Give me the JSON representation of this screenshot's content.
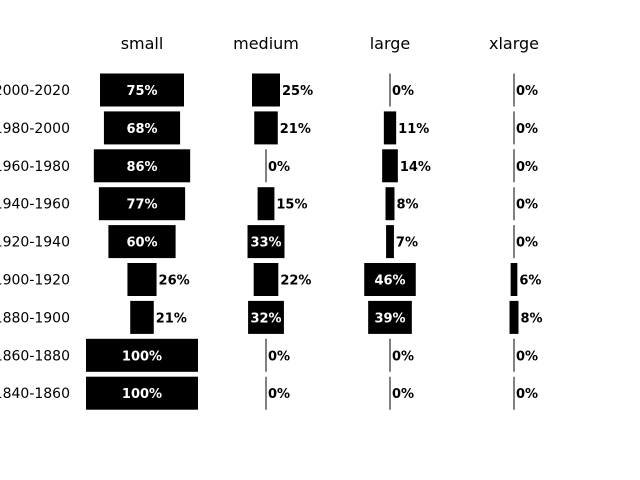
{
  "chart_data": {
    "type": "bar",
    "orientation": "horizontal-centered",
    "title": "",
    "xlabel": "",
    "ylabel": "",
    "value_format": "percent",
    "bar_color": "#000000",
    "label_inside_color": "#ffffff",
    "label_outside_color": "#000000",
    "background": "#ffffff",
    "grid": false,
    "legend": "none",
    "columns": [
      "small",
      "medium",
      "large",
      "xlarge"
    ],
    "categories": [
      "2000-2020",
      "1980-2000",
      "1960-1980",
      "1940-1960",
      "1920-1940",
      "1900-1920",
      "1880-1900",
      "1860-1880",
      "1840-1860"
    ],
    "series": [
      {
        "name": "small",
        "values": [
          75,
          68,
          86,
          77,
          60,
          26,
          21,
          100,
          100
        ]
      },
      {
        "name": "medium",
        "values": [
          25,
          21,
          0,
          15,
          33,
          22,
          32,
          0,
          0
        ]
      },
      {
        "name": "large",
        "values": [
          0,
          11,
          14,
          8,
          7,
          46,
          39,
          0,
          0
        ]
      },
      {
        "name": "xlarge",
        "values": [
          0,
          0,
          0,
          0,
          0,
          6,
          8,
          0,
          0
        ]
      }
    ]
  }
}
